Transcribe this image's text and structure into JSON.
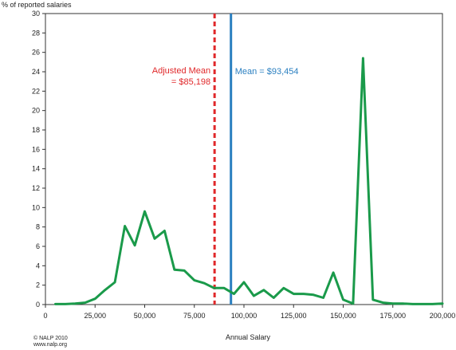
{
  "chart_data": {
    "type": "line",
    "ylabel": "% of reported salaries",
    "xlabel": "Annual Salary",
    "xlim": [
      0,
      200000
    ],
    "ylim": [
      0,
      30
    ],
    "x_ticks": [
      "0",
      "25,000",
      "50,000",
      "75,000",
      "100,000",
      "125,000",
      "150,000",
      "175,000",
      "200,000"
    ],
    "y_ticks": [
      "0",
      "2",
      "4",
      "6",
      "8",
      "10",
      "12",
      "14",
      "16",
      "18",
      "20",
      "22",
      "24",
      "26",
      "28",
      "30"
    ],
    "series": [
      {
        "color": "#1a9a4a",
        "x": [
          5000,
          10000,
          15000,
          20000,
          25000,
          30000,
          35000,
          40000,
          45000,
          50000,
          55000,
          60000,
          65000,
          70000,
          75000,
          80000,
          85000,
          90000,
          95000,
          100000,
          105000,
          110000,
          115000,
          120000,
          125000,
          130000,
          135000,
          140000,
          145000,
          150000,
          155000,
          160000,
          165000,
          170000,
          175000,
          180000,
          185000,
          190000,
          195000,
          200000
        ],
        "y": [
          0.05,
          0.05,
          0.1,
          0.2,
          0.6,
          1.5,
          2.3,
          8.1,
          6.1,
          9.6,
          6.8,
          7.6,
          3.6,
          3.5,
          2.5,
          2.2,
          1.7,
          1.7,
          1.1,
          2.3,
          0.9,
          1.5,
          0.7,
          1.7,
          1.1,
          1.1,
          1.0,
          0.7,
          3.3,
          0.5,
          0.1,
          25.4,
          0.5,
          0.2,
          0.1,
          0.1,
          0.05,
          0.05,
          0.05,
          0.1
        ]
      }
    ],
    "reference_lines": [
      {
        "x": 85198,
        "label_line1": "Adjusted Mean",
        "label_line2": "= $85,198",
        "style": "dashed",
        "color": "#e0282a"
      },
      {
        "x": 93454,
        "label_line1": "Mean = $93,454",
        "label_line2": "",
        "style": "solid",
        "color": "#2a7fc0"
      }
    ],
    "grid": false
  },
  "footer": {
    "copyright": "© NALP 2010",
    "url": "www.nalp.org"
  }
}
